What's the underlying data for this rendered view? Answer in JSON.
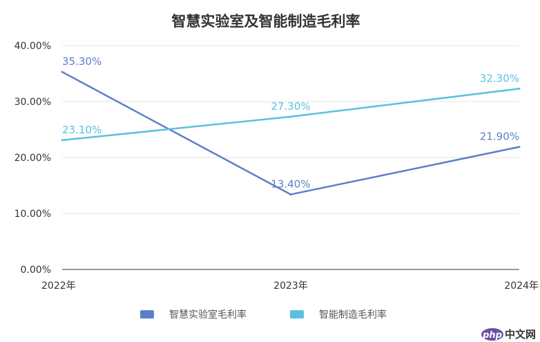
{
  "chart_data": {
    "type": "line",
    "title": "智慧实验室及智能制造毛利率",
    "categories": [
      "2022年",
      "2023年",
      "2024年"
    ],
    "y_ticks": [
      "0.00%",
      "10.00%",
      "20.00%",
      "30.00%",
      "40.00%"
    ],
    "ylim": [
      0,
      40
    ],
    "y_unit": "%",
    "grid": true,
    "legend_position": "bottom",
    "series": [
      {
        "name": "智慧实验室毛利率",
        "values": [
          35.3,
          13.4,
          21.9
        ],
        "labels": [
          "35.30%",
          "13.40%",
          "21.90%"
        ],
        "color": "#5B7FC9"
      },
      {
        "name": "智能制造毛利率",
        "values": [
          23.1,
          27.3,
          32.3
        ],
        "labels": [
          "23.10%",
          "27.30%",
          "32.30%"
        ],
        "color": "#5BC0DE"
      }
    ]
  },
  "watermark": {
    "logo_text": "php",
    "site_text": "中文网"
  }
}
